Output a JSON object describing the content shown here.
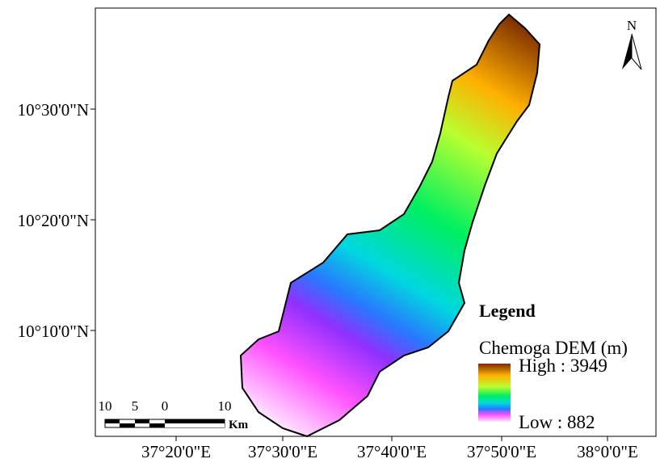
{
  "map": {
    "y_labels": [
      "10°30'0\"N",
      "10°20'0\"N",
      "10°10'0\"N"
    ],
    "x_labels": [
      "37°20'0\"E",
      "37°30'0\"E",
      "37°40'0\"E",
      "37°50'0\"E",
      "38°0'0\"E"
    ],
    "north": "N",
    "legend": {
      "title": "Legend",
      "layer": "Chemoga DEM (m)",
      "high": "High : 3949",
      "low": "Low : 882"
    },
    "scale_bar": {
      "labels": [
        "10",
        "5",
        "0",
        "10"
      ],
      "unit": "Km"
    }
  }
}
